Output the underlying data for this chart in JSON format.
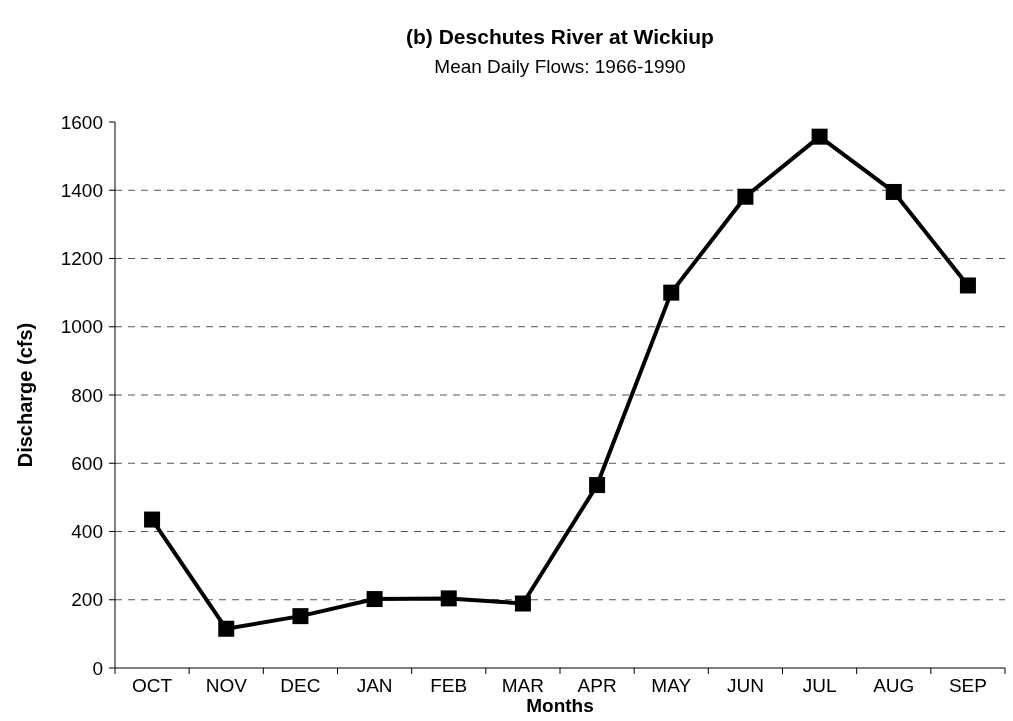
{
  "chart_data": {
    "type": "line",
    "title": "(b)  Deschutes River at Wickiup",
    "subtitle": "Mean Daily Flows: 1966-1990",
    "xlabel": "Months",
    "ylabel": "Discharge (cfs)",
    "categories": [
      "OCT",
      "NOV",
      "DEC",
      "JAN",
      "FEB",
      "MAR",
      "APR",
      "MAY",
      "JUN",
      "JUL",
      "AUG",
      "SEP"
    ],
    "series": [
      {
        "color": "#000000",
        "values": [
          435,
          115,
          152,
          202,
          204,
          189,
          536,
          1100,
          1381,
          1557,
          1395,
          1121
        ]
      }
    ],
    "ylim": [
      0,
      1600
    ],
    "yticks": [
      0,
      200,
      400,
      600,
      800,
      1000,
      1200,
      1400,
      1600
    ],
    "grid": "y",
    "marker": "square",
    "line_style": "solid"
  }
}
